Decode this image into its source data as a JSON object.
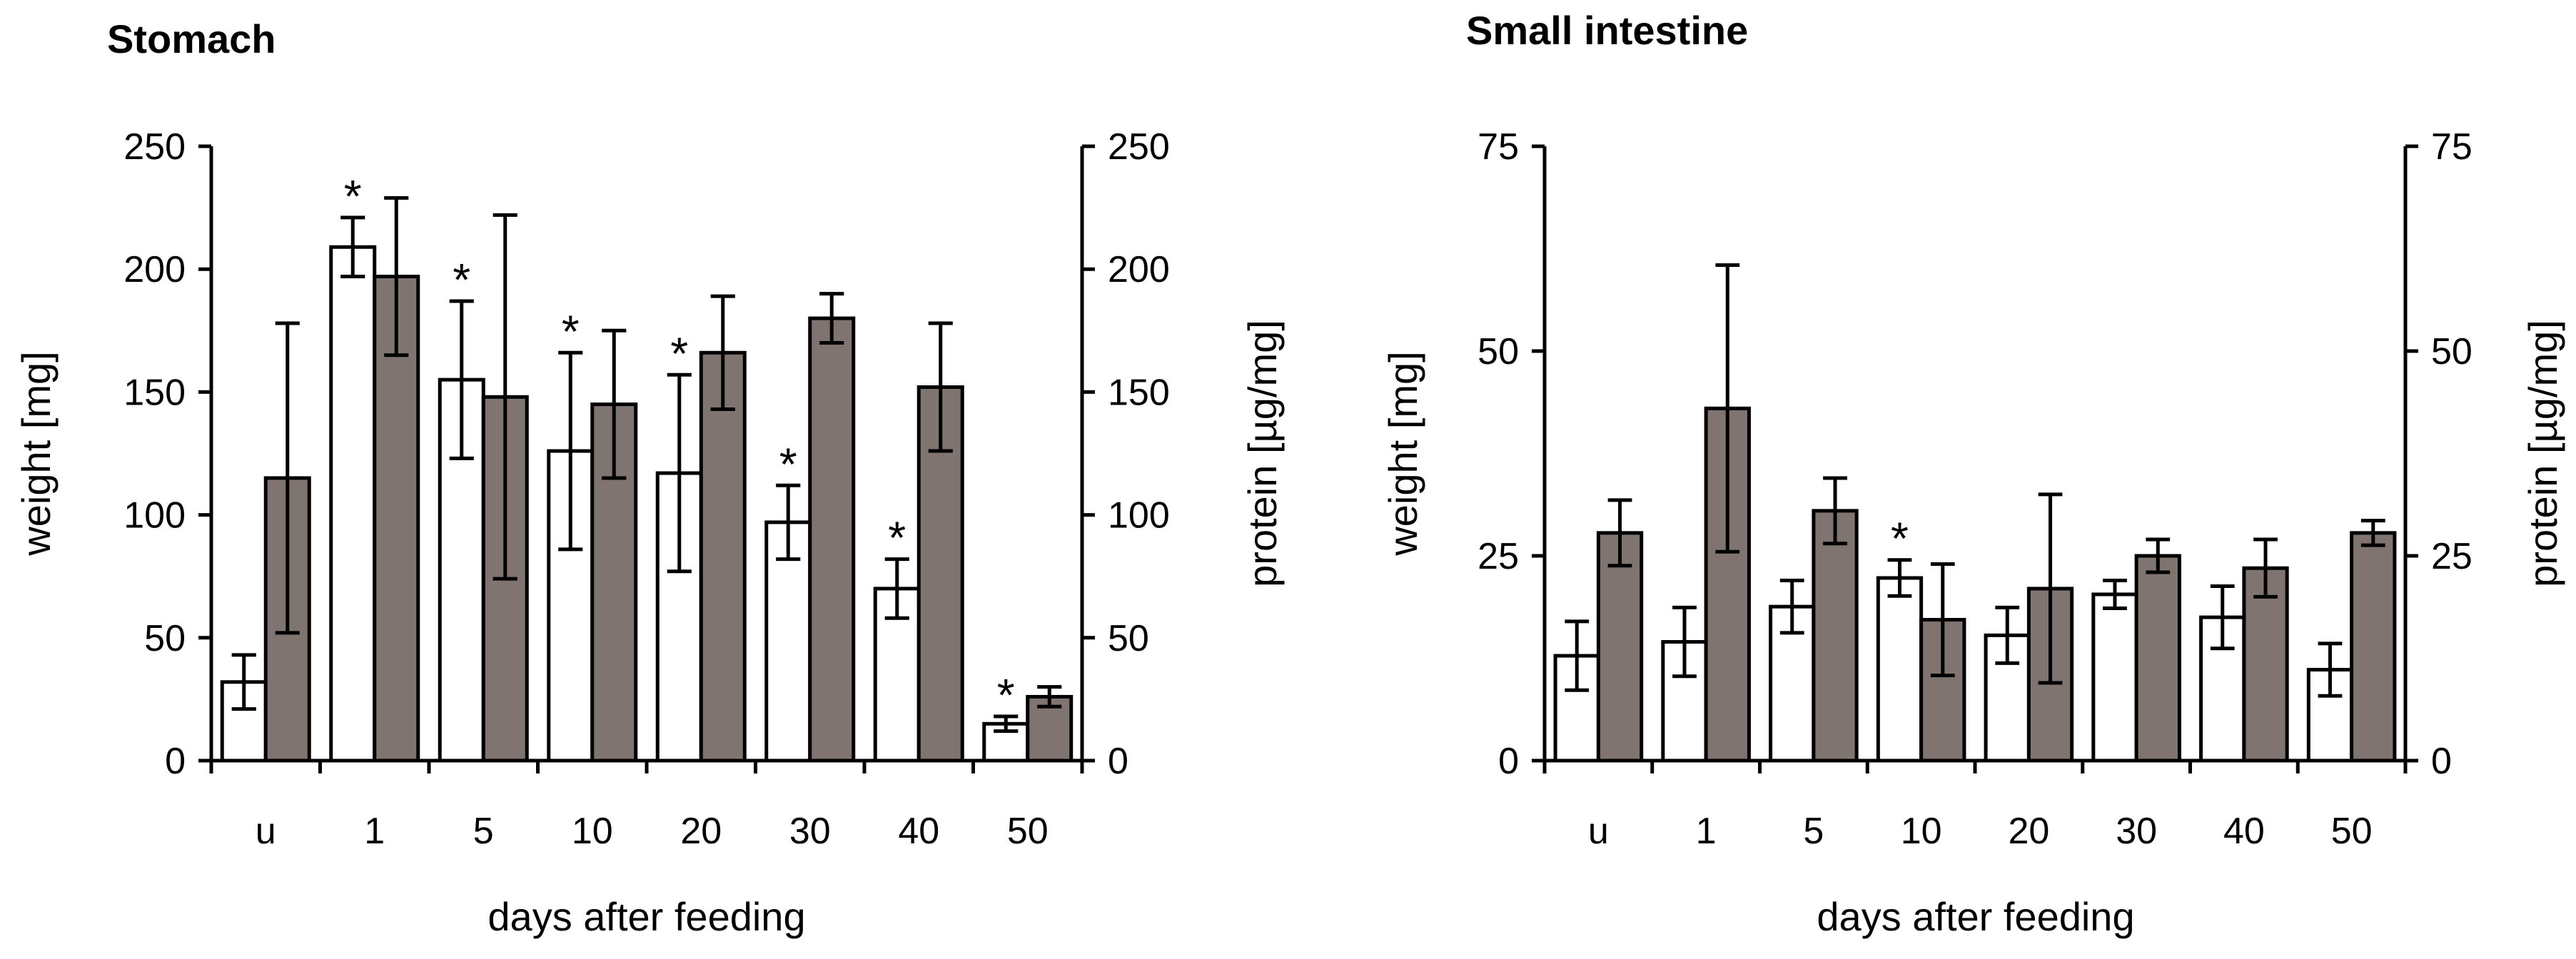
{
  "colors": {
    "weight_fill": "#ffffff",
    "protein_fill": "#7f7470",
    "stroke": "#000000"
  },
  "chart_data": [
    {
      "type": "bar",
      "title": "Stomach",
      "xlabel": "days after feeding",
      "ylabel_left": "weight [mg]",
      "ylabel_right": "protein [µg/mg]",
      "ylim": [
        0,
        250
      ],
      "yticks": [
        "0",
        "50",
        "100",
        "150",
        "200",
        "250"
      ],
      "grid": false,
      "categories": [
        "u",
        "1",
        "5",
        "10",
        "20",
        "30",
        "40",
        "50"
      ],
      "series": [
        {
          "name": "weight",
          "axis": "left",
          "values": [
            32,
            209,
            155,
            126,
            117,
            97,
            70,
            15
          ],
          "error": [
            11,
            12,
            32,
            40,
            40,
            15,
            12,
            3
          ],
          "significance": [
            "",
            "*",
            "*",
            "*",
            "*",
            "*",
            "*",
            "*"
          ]
        },
        {
          "name": "protein",
          "axis": "right",
          "values": [
            115,
            197,
            148,
            145,
            166,
            180,
            152,
            26
          ],
          "error": [
            63,
            32,
            74,
            30,
            23,
            10,
            26,
            4
          ]
        }
      ]
    },
    {
      "type": "bar",
      "title": "Small intestine",
      "xlabel": "days after feeding",
      "ylabel_left": "weight [mg]",
      "ylabel_right": "protein [µg/mg]",
      "ylim": [
        0,
        75
      ],
      "yticks": [
        "0",
        "25",
        "50",
        "75"
      ],
      "grid": false,
      "categories": [
        "u",
        "1",
        "5",
        "10",
        "20",
        "30",
        "40",
        "50"
      ],
      "series": [
        {
          "name": "weight",
          "axis": "left",
          "values": [
            12.8,
            14.5,
            18.8,
            22.3,
            15.3,
            20.3,
            17.5,
            11.1
          ],
          "error": [
            4.2,
            4.2,
            3.2,
            2.2,
            3.4,
            1.7,
            3.8,
            3.2
          ],
          "significance": [
            "",
            "",
            "",
            "*",
            "",
            "",
            "",
            ""
          ]
        },
        {
          "name": "protein",
          "axis": "right",
          "values": [
            27.8,
            43.0,
            30.5,
            17.2,
            21.0,
            25.0,
            23.5,
            27.8
          ],
          "error": [
            4.0,
            17.5,
            4.0,
            6.8,
            11.5,
            2.0,
            3.5,
            1.5
          ]
        }
      ]
    }
  ]
}
